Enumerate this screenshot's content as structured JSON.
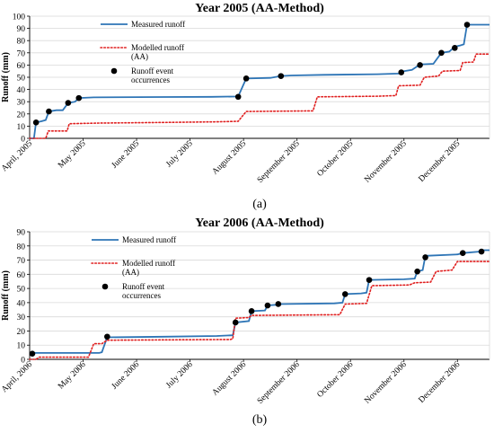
{
  "chart_data": [
    {
      "type": "line",
      "id": "a",
      "title": "Year 2005 (AA-Method)",
      "caption": "(a)",
      "ylabel": "Runoff (mm)",
      "ylim": [
        0,
        100
      ],
      "yticks": [
        0,
        10,
        20,
        30,
        40,
        50,
        60,
        70,
        80,
        90,
        100
      ],
      "xlim": [
        0,
        8.6
      ],
      "xticks": [
        {
          "x": 0,
          "label": "April, 2005"
        },
        {
          "x": 1,
          "label": "May 2005"
        },
        {
          "x": 2,
          "label": "June 2005"
        },
        {
          "x": 3,
          "label": "July 2005"
        },
        {
          "x": 4,
          "label": "August 2005"
        },
        {
          "x": 5,
          "label": "September 2005"
        },
        {
          "x": 6,
          "label": "October 2005"
        },
        {
          "x": 7,
          "label": "November 2005"
        },
        {
          "x": 8,
          "label": "December 2005"
        }
      ],
      "legend": {
        "placement": "top-left",
        "entries": [
          "Measured runoff",
          "Modelled runoff (AA)",
          "Runoff event occurrences"
        ]
      },
      "series": [
        {
          "name": "Measured runoff",
          "style": "solid",
          "color": "#2E75B6",
          "points": [
            [
              0,
              0
            ],
            [
              0.08,
              0
            ],
            [
              0.12,
              13
            ],
            [
              0.22,
              14
            ],
            [
              0.3,
              15
            ],
            [
              0.36,
              22
            ],
            [
              0.5,
              23
            ],
            [
              0.62,
              23
            ],
            [
              0.72,
              29
            ],
            [
              0.85,
              30
            ],
            [
              0.92,
              33
            ],
            [
              1.2,
              33.5
            ],
            [
              2.5,
              33.8
            ],
            [
              3.4,
              34
            ],
            [
              3.9,
              34.3
            ],
            [
              4.05,
              49
            ],
            [
              4.5,
              49.5
            ],
            [
              4.7,
              51
            ],
            [
              4.9,
              51.5
            ],
            [
              5.5,
              52
            ],
            [
              6.5,
              52.5
            ],
            [
              6.9,
              53
            ],
            [
              7.0,
              55
            ],
            [
              7.15,
              56
            ],
            [
              7.3,
              60.5
            ],
            [
              7.55,
              61
            ],
            [
              7.7,
              70
            ],
            [
              7.85,
              71
            ],
            [
              7.95,
              75
            ],
            [
              8.05,
              76
            ],
            [
              8.12,
              77
            ],
            [
              8.18,
              93
            ],
            [
              8.6,
              93
            ]
          ]
        },
        {
          "name": "Modelled runoff (AA)",
          "style": "dotted",
          "color": "#E02020",
          "points": [
            [
              0,
              0
            ],
            [
              0.3,
              0
            ],
            [
              0.35,
              6
            ],
            [
              0.7,
              6
            ],
            [
              0.74,
              12
            ],
            [
              1.3,
              12.5
            ],
            [
              2.5,
              13
            ],
            [
              3.5,
              13.5
            ],
            [
              3.9,
              14
            ],
            [
              4.05,
              22
            ],
            [
              5.3,
              22.5
            ],
            [
              5.38,
              34
            ],
            [
              6.5,
              34.5
            ],
            [
              6.85,
              35
            ],
            [
              6.9,
              43
            ],
            [
              7.3,
              43.5
            ],
            [
              7.38,
              50
            ],
            [
              7.65,
              51
            ],
            [
              7.72,
              55
            ],
            [
              8.05,
              55.5
            ],
            [
              8.1,
              62
            ],
            [
              8.3,
              62.5
            ],
            [
              8.35,
              69
            ],
            [
              8.6,
              69
            ]
          ]
        }
      ],
      "events": [
        [
          0.12,
          13
        ],
        [
          0.36,
          22
        ],
        [
          0.72,
          29
        ],
        [
          0.92,
          33
        ],
        [
          3.9,
          34
        ],
        [
          4.05,
          49
        ],
        [
          4.7,
          51
        ],
        [
          6.95,
          54
        ],
        [
          7.3,
          60
        ],
        [
          7.7,
          70
        ],
        [
          7.95,
          74
        ],
        [
          8.18,
          93
        ]
      ]
    },
    {
      "type": "line",
      "id": "b",
      "title": "Year 2006 (AA-Method)",
      "caption": "(b)",
      "ylabel": "Runoff (mm)",
      "ylim": [
        0,
        90
      ],
      "yticks": [
        0,
        10,
        20,
        30,
        40,
        50,
        60,
        70,
        80,
        90
      ],
      "xlim": [
        0,
        8.6
      ],
      "xticks": [
        {
          "x": 0,
          "label": "April, 2006"
        },
        {
          "x": 1,
          "label": "May 2006"
        },
        {
          "x": 2,
          "label": "June 2006"
        },
        {
          "x": 3,
          "label": "July 2006"
        },
        {
          "x": 4,
          "label": "August 2006"
        },
        {
          "x": 5,
          "label": "September 2006"
        },
        {
          "x": 6,
          "label": "October 2006"
        },
        {
          "x": 7,
          "label": "November 2006"
        },
        {
          "x": 8,
          "label": "December 2006"
        }
      ],
      "legend": {
        "placement": "top-left",
        "entries": [
          "Measured runoff",
          "Modelled runoff (AA)",
          "Runoff event occurrences"
        ]
      },
      "series": [
        {
          "name": "Measured runoff",
          "style": "solid",
          "color": "#2E75B6",
          "points": [
            [
              0,
              4
            ],
            [
              0.05,
              4.5
            ],
            [
              1.3,
              4.5
            ],
            [
              1.35,
              5
            ],
            [
              1.45,
              15.5
            ],
            [
              2.5,
              16
            ],
            [
              3.5,
              16.5
            ],
            [
              3.8,
              17
            ],
            [
              3.85,
              26
            ],
            [
              4.1,
              27
            ],
            [
              4.15,
              34
            ],
            [
              4.4,
              34.5
            ],
            [
              4.45,
              38
            ],
            [
              4.6,
              38.5
            ],
            [
              4.65,
              39
            ],
            [
              5.7,
              39.5
            ],
            [
              5.85,
              40
            ],
            [
              5.9,
              46
            ],
            [
              6.2,
              46.5
            ],
            [
              6.3,
              47
            ],
            [
              6.35,
              56
            ],
            [
              7.0,
              56.5
            ],
            [
              7.2,
              57
            ],
            [
              7.25,
              62
            ],
            [
              7.35,
              63
            ],
            [
              7.4,
              73
            ],
            [
              8.0,
              74
            ],
            [
              8.1,
              75
            ],
            [
              8.4,
              76
            ],
            [
              8.45,
              77
            ],
            [
              8.6,
              77
            ]
          ]
        },
        {
          "name": "Modelled runoff (AA)",
          "style": "dotted",
          "color": "#E02020",
          "points": [
            [
              0,
              0
            ],
            [
              0.12,
              0
            ],
            [
              0.18,
              1.5
            ],
            [
              1.1,
              1.5
            ],
            [
              1.2,
              11
            ],
            [
              1.35,
              11
            ],
            [
              1.45,
              13.5
            ],
            [
              3.75,
              14
            ],
            [
              3.8,
              14.5
            ],
            [
              3.85,
              29
            ],
            [
              4.1,
              29.5
            ],
            [
              4.15,
              31
            ],
            [
              5.8,
              31.5
            ],
            [
              5.9,
              39
            ],
            [
              6.3,
              39.5
            ],
            [
              6.4,
              52
            ],
            [
              7.1,
              52.5
            ],
            [
              7.2,
              54
            ],
            [
              7.5,
              54.5
            ],
            [
              7.6,
              62
            ],
            [
              7.9,
              63
            ],
            [
              8.0,
              69
            ],
            [
              8.6,
              69
            ]
          ]
        }
      ],
      "events": [
        [
          0.05,
          4
        ],
        [
          1.45,
          16
        ],
        [
          3.85,
          26
        ],
        [
          4.15,
          34
        ],
        [
          4.45,
          38
        ],
        [
          4.65,
          39
        ],
        [
          5.9,
          46
        ],
        [
          6.35,
          56
        ],
        [
          7.25,
          62
        ],
        [
          7.4,
          72
        ],
        [
          8.1,
          75
        ],
        [
          8.45,
          76
        ]
      ]
    }
  ]
}
